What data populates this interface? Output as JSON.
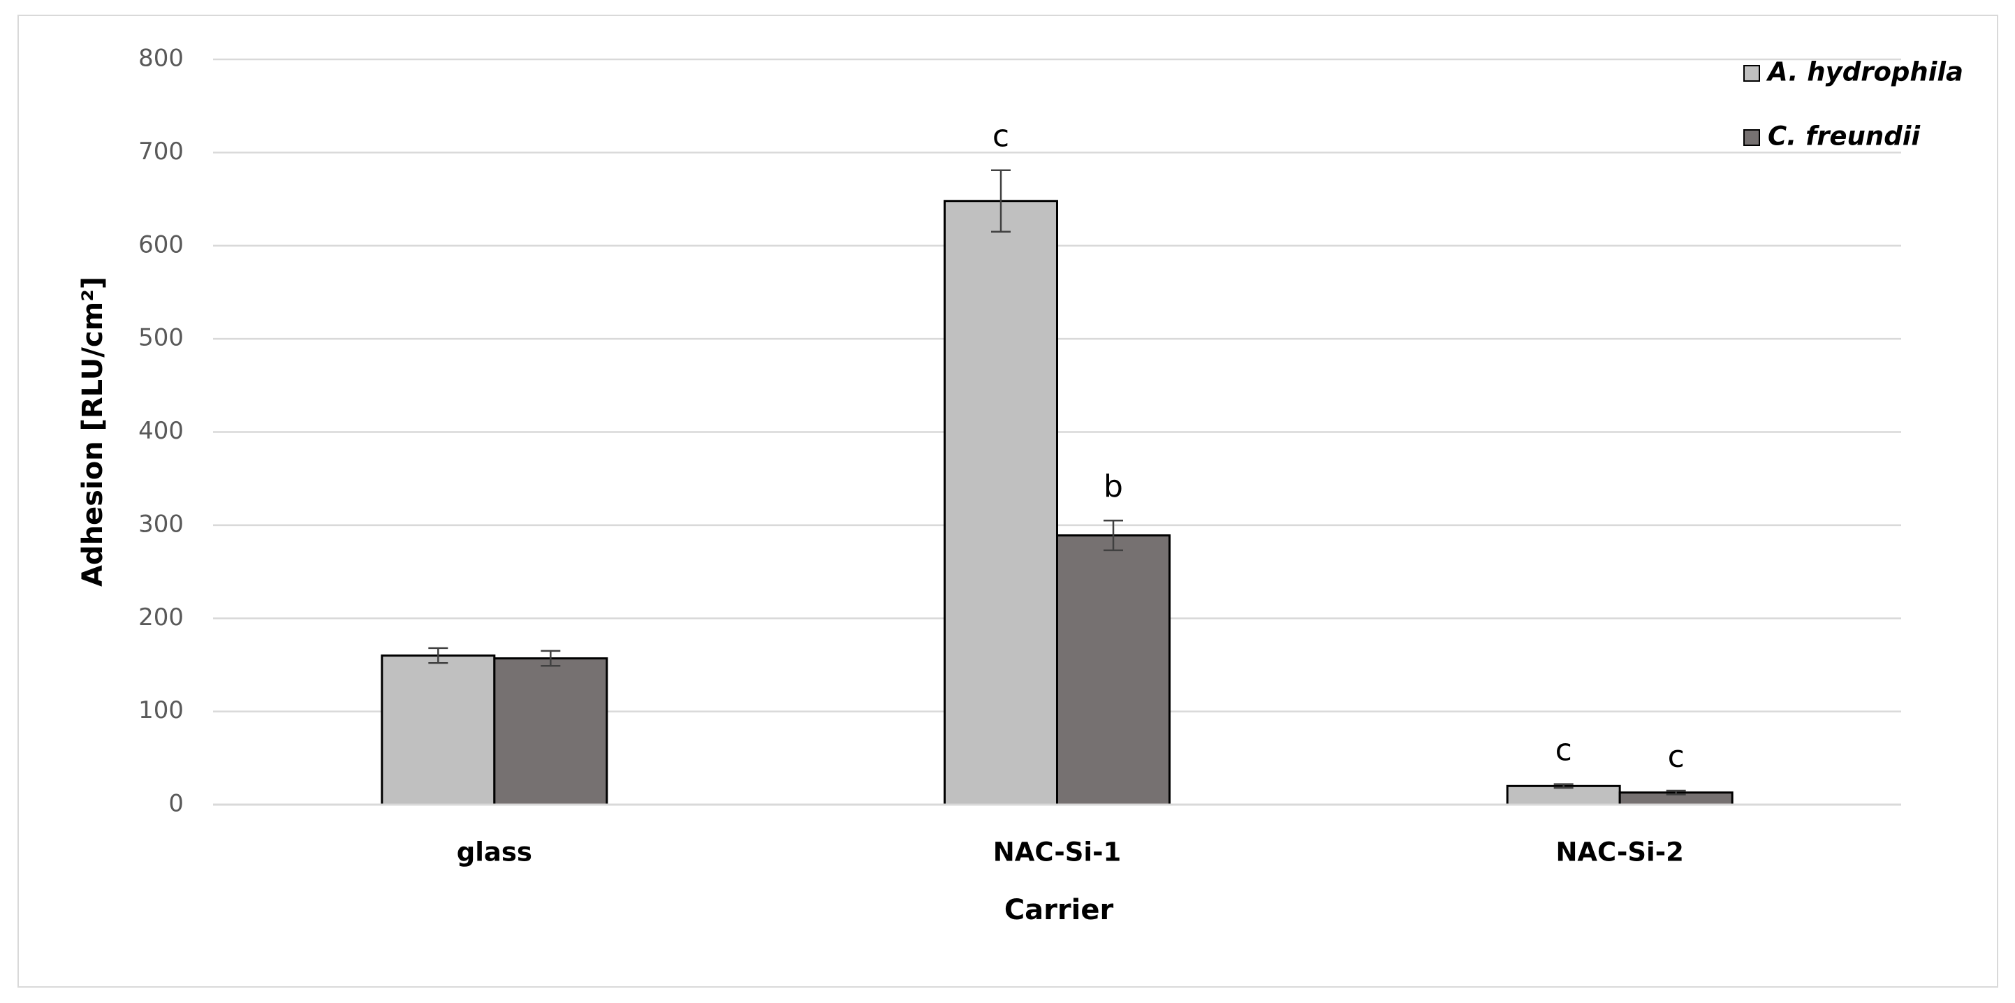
{
  "chart_data": {
    "type": "bar",
    "x_label": "Carrier",
    "y_label": "Adhesion [RLU/cm²]",
    "categories": [
      "glass",
      "NAC-Si-1",
      "NAC-Si-2"
    ],
    "series": [
      {
        "name": "A. hydrophila",
        "color": "#c0c0c0",
        "values": [
          160,
          648,
          20
        ],
        "errors": [
          8,
          33,
          2
        ],
        "labels": [
          null,
          "c",
          "c"
        ]
      },
      {
        "name": "C. freundii",
        "color": "#767171",
        "values": [
          157,
          289,
          13
        ],
        "errors": [
          8,
          16,
          2
        ],
        "labels": [
          null,
          "b",
          "c"
        ]
      }
    ],
    "ylim": [
      0,
      800
    ],
    "yticks": [
      0,
      100,
      200,
      300,
      400,
      500,
      600,
      700,
      800
    ],
    "grid": true,
    "legend": "top-right"
  }
}
